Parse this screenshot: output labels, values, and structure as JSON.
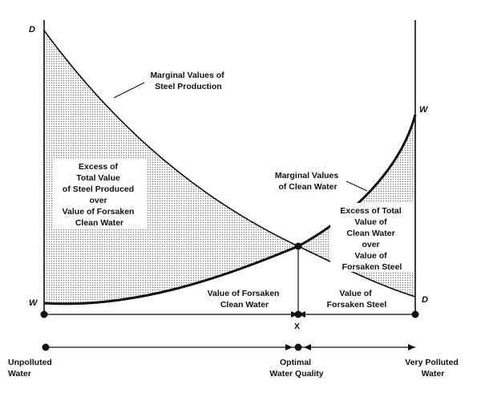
{
  "curves": {
    "steel_start_label": "D",
    "steel_end_label": "D",
    "water_start_label": "W",
    "water_end_label": "W"
  },
  "labels": {
    "steel_curve": [
      "Marginal Values of",
      "Steel Production"
    ],
    "water_curve": [
      "Marginal Values",
      "of Clean Water"
    ],
    "left_excess": [
      "Excess of",
      "Total Value",
      "of Steel Produced",
      "over",
      "Value of Forsaken",
      "Clean Water"
    ],
    "right_excess": [
      "Excess of Total",
      "Value of",
      "Clean Water",
      "over",
      "Value of",
      "Forsaken Steel"
    ],
    "forsaken_clean_water": [
      "Value of Forsaken",
      "Clean Water"
    ],
    "forsaken_steel": [
      "Value of",
      "Forsaken Steel"
    ],
    "optimum_marker": "X"
  },
  "bottom_axis": {
    "left": [
      "Unpolluted",
      "Water"
    ],
    "middle": [
      "Optimal",
      "Water Quality"
    ],
    "right": [
      "Very Polluted",
      "Water"
    ]
  },
  "colors": {
    "ink": "#111111",
    "shading": "#b9b9b9"
  }
}
